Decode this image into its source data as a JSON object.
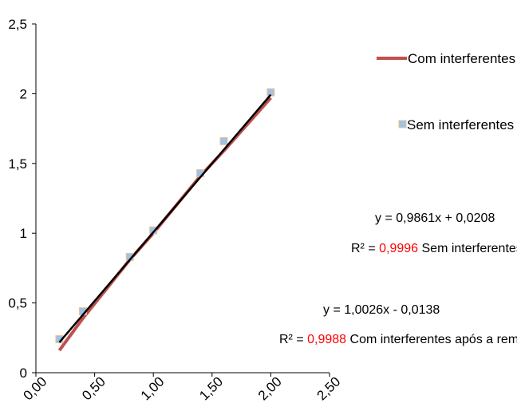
{
  "chart_data": {
    "type": "scatter",
    "title": "",
    "xlabel": "",
    "ylabel": "",
    "xlim": [
      0,
      2.5
    ],
    "ylim": [
      0,
      2.5
    ],
    "x_ticks": [
      "0,00",
      "0,50",
      "1,00",
      "1,50",
      "2,00",
      "2,50"
    ],
    "y_ticks": [
      "0",
      "0,5",
      "1",
      "1,5",
      "2",
      "2,5"
    ],
    "grid": false,
    "legend_position": "right",
    "series": [
      {
        "name": "Com interferentes",
        "kind": "line",
        "color": "#c0504d",
        "x": [
          0.2,
          0.4,
          0.8,
          1.0,
          1.4,
          1.6,
          2.0
        ],
        "y": [
          0.16,
          0.39,
          0.81,
          1.0,
          1.41,
          1.59,
          1.97
        ]
      },
      {
        "name": "Sem interferentes",
        "kind": "scatter",
        "color": "#9dc3e6",
        "x": [
          0.2,
          0.4,
          0.8,
          1.0,
          1.4,
          1.6,
          2.0
        ],
        "y": [
          0.24,
          0.44,
          0.83,
          1.02,
          1.43,
          1.66,
          2.01
        ]
      }
    ],
    "trendline": {
      "color": "#000000",
      "x": [
        0.2,
        2.0
      ],
      "y": [
        0.218,
        1.993
      ]
    },
    "annotations": {
      "eq1": {
        "equation": "y = 0,9861x + 0,0208",
        "r2_prefix": "R² = ",
        "r2_value": "0,9996",
        "r2_label": " Sem interferentes"
      },
      "eq2": {
        "equation": "y = 1,0026x - 0,0138",
        "r2_prefix": "R² = ",
        "r2_value": "0,9988",
        "r2_label": " Com interferentes após a remoção"
      }
    },
    "highlight_color": "#ff0000"
  }
}
